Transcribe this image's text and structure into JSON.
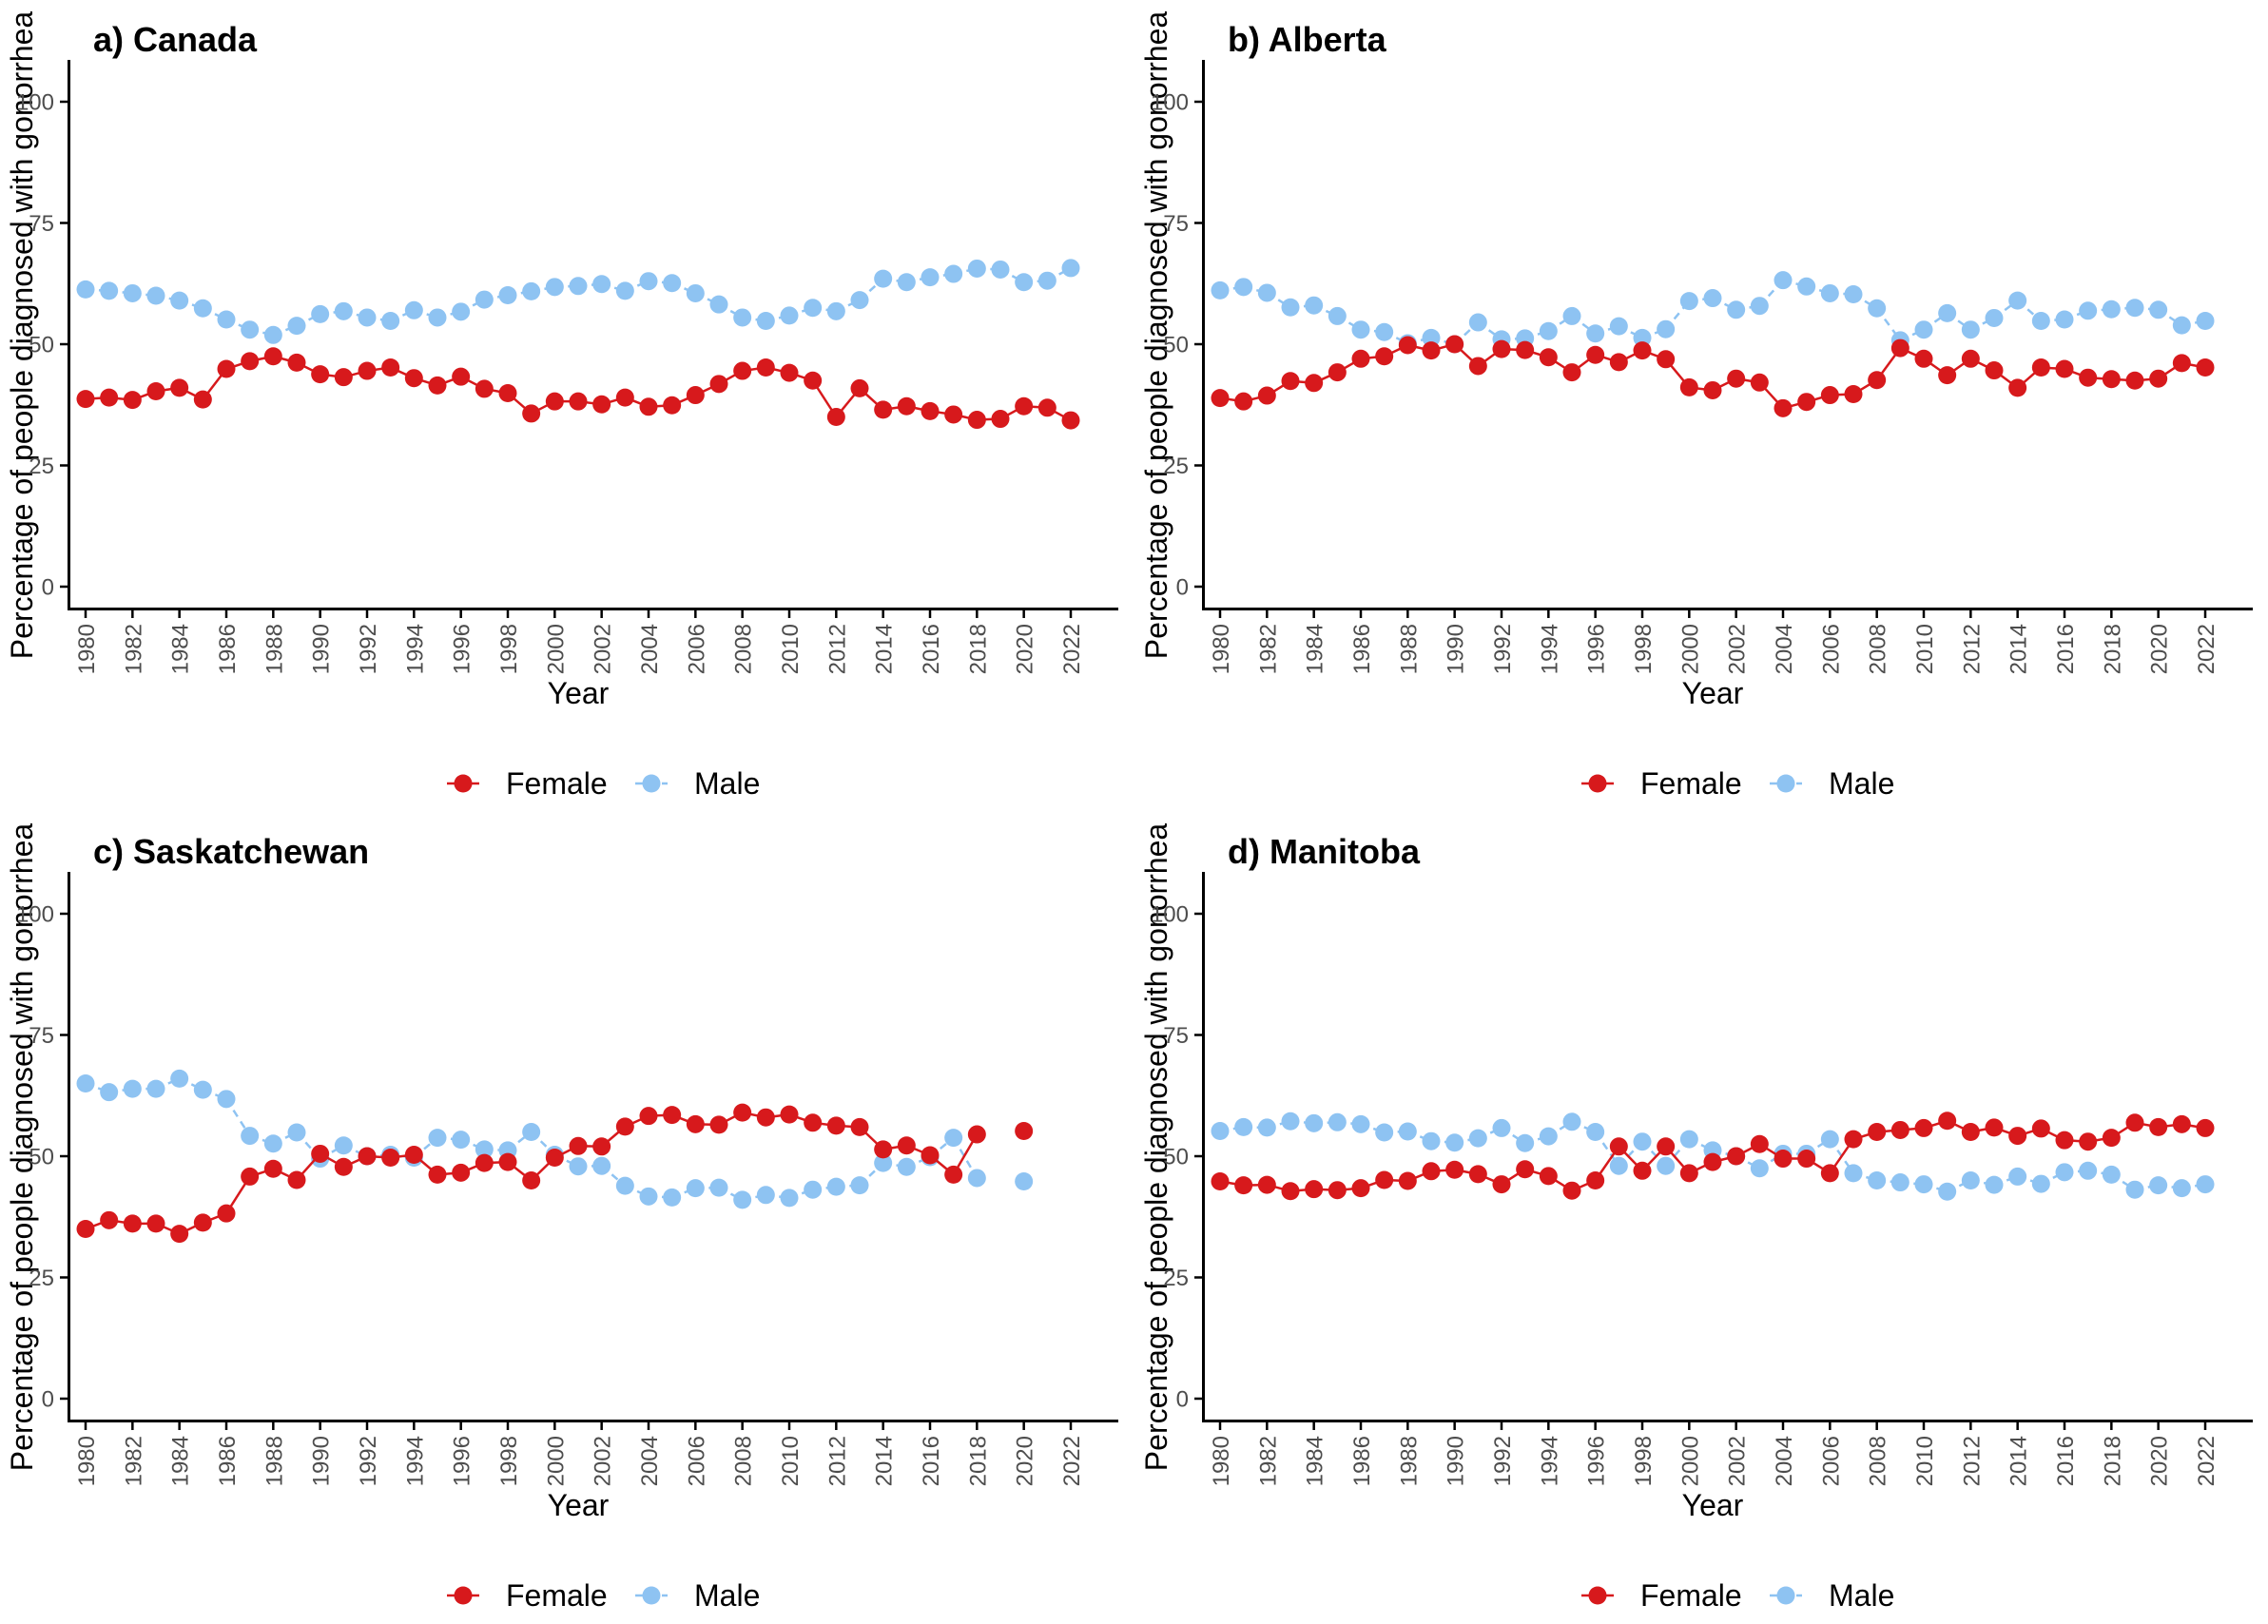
{
  "colors": {
    "female": "#d7191c",
    "male": "#8ec3f2",
    "axis": "#000000",
    "tick_text": "#4d4d4d"
  },
  "chart_data": [
    {
      "type": "line",
      "title": "a) Canada",
      "xlabel": "Year",
      "ylabel": "Percentage of people diagnosed with gonorrhea",
      "ylim": [
        0,
        100
      ],
      "yticks": [
        "0",
        "25",
        "50",
        "75",
        "100"
      ],
      "x": [
        1980,
        1981,
        1982,
        1983,
        1984,
        1985,
        1986,
        1987,
        1988,
        1989,
        1990,
        1991,
        1992,
        1993,
        1994,
        1995,
        1996,
        1997,
        1998,
        1999,
        2000,
        2001,
        2002,
        2003,
        2004,
        2005,
        2006,
        2007,
        2008,
        2009,
        2010,
        2011,
        2012,
        2013,
        2014,
        2015,
        2016,
        2017,
        2018,
        2019,
        2020,
        2021,
        2022
      ],
      "xticks": [
        "1980",
        "1982",
        "1984",
        "1986",
        "1988",
        "1990",
        "1992",
        "1994",
        "1996",
        "1998",
        "2000",
        "2002",
        "2004",
        "2006",
        "2008",
        "2010",
        "2012",
        "2014",
        "2016",
        "2018",
        "2020",
        "2022"
      ],
      "legend": [
        "Female",
        "Male"
      ],
      "series": [
        {
          "name": "Female",
          "values": [
            38.7,
            39.0,
            38.5,
            40.3,
            41.0,
            38.6,
            44.9,
            46.5,
            47.5,
            46.2,
            43.8,
            43.2,
            44.5,
            45.2,
            43.0,
            41.5,
            43.3,
            40.8,
            39.9,
            35.7,
            38.2,
            38.2,
            37.6,
            39.0,
            37.1,
            37.4,
            39.5,
            41.8,
            44.5,
            45.2,
            44.1,
            42.5,
            35.0,
            40.9,
            36.5,
            37.2,
            36.2,
            35.5,
            34.4,
            34.6,
            37.2,
            36.9,
            34.3
          ]
        },
        {
          "name": "Male",
          "values": [
            61.3,
            61.0,
            60.5,
            60.0,
            59.0,
            57.4,
            55.1,
            53.0,
            51.9,
            53.8,
            56.2,
            56.8,
            55.5,
            54.8,
            57.0,
            55.5,
            56.7,
            59.2,
            60.1,
            60.9,
            61.8,
            62.0,
            62.4,
            61.0,
            63.0,
            62.6,
            60.5,
            58.2,
            55.5,
            54.8,
            55.9,
            57.5,
            56.8,
            59.1,
            63.5,
            62.8,
            63.8,
            64.5,
            65.6,
            65.4,
            62.8,
            63.1,
            65.7
          ]
        }
      ]
    },
    {
      "type": "line",
      "title": "b) Alberta",
      "xlabel": "Year",
      "ylabel": "Percentage of people diagnosed with gonorrhea",
      "ylim": [
        0,
        100
      ],
      "yticks": [
        "0",
        "25",
        "50",
        "75",
        "100"
      ],
      "x": [
        1980,
        1981,
        1982,
        1983,
        1984,
        1985,
        1986,
        1987,
        1988,
        1989,
        1990,
        1991,
        1992,
        1993,
        1994,
        1995,
        1996,
        1997,
        1998,
        1999,
        2000,
        2001,
        2002,
        2003,
        2004,
        2005,
        2006,
        2007,
        2008,
        2009,
        2010,
        2011,
        2012,
        2013,
        2014,
        2015,
        2016,
        2017,
        2018,
        2019,
        2020,
        2021,
        2022
      ],
      "xticks": [
        "1980",
        "1982",
        "1984",
        "1986",
        "1988",
        "1990",
        "1992",
        "1994",
        "1996",
        "1998",
        "2000",
        "2002",
        "2004",
        "2006",
        "2008",
        "2010",
        "2012",
        "2014",
        "2016",
        "2018",
        "2020",
        "2022"
      ],
      "legend": [
        "Female",
        "Male"
      ],
      "series": [
        {
          "name": "Female",
          "values": [
            38.9,
            38.2,
            39.4,
            42.4,
            42.0,
            44.2,
            47.0,
            47.5,
            49.8,
            48.7,
            50.0,
            45.5,
            49.0,
            48.8,
            47.3,
            44.2,
            47.8,
            46.3,
            48.7,
            46.9,
            41.1,
            40.5,
            42.9,
            42.1,
            36.8,
            38.1,
            39.5,
            39.7,
            42.6,
            49.2,
            47.0,
            43.6,
            47.0,
            44.6,
            41.0,
            45.2,
            44.9,
            43.1,
            42.8,
            42.5,
            42.9,
            46.1,
            45.2
          ]
        },
        {
          "name": "Male",
          "values": [
            61.1,
            61.8,
            60.6,
            57.6,
            58.0,
            55.8,
            53.0,
            52.5,
            50.2,
            51.3,
            50.0,
            54.5,
            51.0,
            51.2,
            52.7,
            55.8,
            52.2,
            53.7,
            51.3,
            53.1,
            58.9,
            59.5,
            57.1,
            57.9,
            63.2,
            61.9,
            60.5,
            60.3,
            57.4,
            50.8,
            53.0,
            56.4,
            53.0,
            55.4,
            59.0,
            54.8,
            55.1,
            56.9,
            57.2,
            57.5,
            57.1,
            53.9,
            54.8
          ]
        }
      ]
    },
    {
      "type": "line",
      "title": "c) Saskatchewan",
      "xlabel": "Year",
      "ylabel": "Percentage of people diagnosed with gonorrhea",
      "ylim": [
        0,
        100
      ],
      "yticks": [
        "0",
        "25",
        "50",
        "75",
        "100"
      ],
      "x": [
        1980,
        1981,
        1982,
        1983,
        1984,
        1985,
        1986,
        1987,
        1988,
        1989,
        1990,
        1991,
        1992,
        1993,
        1994,
        1995,
        1996,
        1997,
        1998,
        1999,
        2000,
        2001,
        2002,
        2003,
        2004,
        2005,
        2006,
        2007,
        2008,
        2009,
        2010,
        2011,
        2012,
        2013,
        2014,
        2015,
        2016,
        2017,
        2018,
        2019,
        2020,
        2021,
        2022
      ],
      "xticks": [
        "1980",
        "1982",
        "1984",
        "1986",
        "1988",
        "1990",
        "1992",
        "1994",
        "1996",
        "1998",
        "2000",
        "2002",
        "2004",
        "2006",
        "2008",
        "2010",
        "2012",
        "2014",
        "2016",
        "2018",
        "2020",
        "2022"
      ],
      "legend": [
        "Female",
        "Male"
      ],
      "series": [
        {
          "name": "Female",
          "values": [
            35.0,
            36.8,
            36.1,
            36.1,
            34.0,
            36.3,
            38.2,
            45.8,
            47.4,
            45.1,
            50.5,
            47.8,
            50.0,
            49.7,
            50.3,
            46.2,
            46.6,
            48.6,
            48.8,
            45.0,
            49.7,
            52.1,
            52.0,
            56.1,
            58.3,
            58.5,
            56.6,
            56.5,
            59.0,
            58.0,
            58.6,
            56.9,
            56.3,
            56.0,
            51.4,
            52.2,
            50.2,
            46.2,
            54.5,
            null,
            55.2,
            null,
            null
          ]
        },
        {
          "name": "Male",
          "values": [
            65.0,
            63.2,
            63.9,
            63.9,
            66.0,
            63.7,
            61.8,
            54.2,
            52.6,
            54.9,
            49.5,
            52.2,
            50.0,
            50.3,
            49.7,
            53.8,
            53.4,
            51.4,
            51.2,
            55.0,
            50.3,
            47.9,
            48.0,
            43.9,
            41.7,
            41.5,
            43.4,
            43.5,
            41.0,
            42.0,
            41.4,
            43.1,
            43.7,
            44.0,
            48.6,
            47.8,
            49.8,
            53.8,
            45.5,
            null,
            44.8,
            null,
            null
          ]
        }
      ]
    },
    {
      "type": "line",
      "title": "d) Manitoba",
      "xlabel": "Year",
      "ylabel": "Percentage of people diagnosed with gonorrhea",
      "ylim": [
        0,
        100
      ],
      "yticks": [
        "0",
        "25",
        "50",
        "75",
        "100"
      ],
      "x": [
        1980,
        1981,
        1982,
        1983,
        1984,
        1985,
        1986,
        1987,
        1988,
        1989,
        1990,
        1991,
        1992,
        1993,
        1994,
        1995,
        1996,
        1997,
        1998,
        1999,
        2000,
        2001,
        2002,
        2003,
        2004,
        2005,
        2006,
        2007,
        2008,
        2009,
        2010,
        2011,
        2012,
        2013,
        2014,
        2015,
        2016,
        2017,
        2018,
        2019,
        2020,
        2021,
        2022
      ],
      "xticks": [
        "1980",
        "1982",
        "1984",
        "1986",
        "1988",
        "1990",
        "1992",
        "1994",
        "1996",
        "1998",
        "2000",
        "2002",
        "2004",
        "2006",
        "2008",
        "2010",
        "2012",
        "2014",
        "2016",
        "2018",
        "2020",
        "2022"
      ],
      "legend": [
        "Female",
        "Male"
      ],
      "series": [
        {
          "name": "Female",
          "values": [
            44.8,
            44.0,
            44.1,
            42.8,
            43.2,
            43.0,
            43.4,
            45.1,
            44.9,
            46.9,
            47.2,
            46.3,
            44.2,
            47.3,
            45.9,
            42.9,
            45.0,
            52.0,
            47.0,
            52.0,
            46.5,
            48.8,
            50.0,
            52.5,
            49.5,
            49.5,
            46.5,
            53.5,
            55.0,
            55.4,
            55.8,
            57.3,
            55.0,
            55.9,
            54.2,
            55.7,
            53.3,
            53.0,
            53.8,
            56.9,
            56.0,
            56.6,
            55.8
          ]
        },
        {
          "name": "Male",
          "values": [
            55.2,
            56.0,
            55.9,
            57.2,
            56.8,
            57.0,
            56.6,
            54.9,
            55.1,
            53.1,
            52.8,
            53.7,
            55.8,
            52.7,
            54.1,
            57.1,
            55.0,
            48.0,
            53.0,
            48.0,
            53.5,
            51.2,
            50.0,
            47.5,
            50.5,
            50.5,
            53.5,
            46.5,
            45.0,
            44.6,
            44.2,
            42.7,
            45.0,
            44.1,
            45.8,
            44.3,
            46.7,
            47.0,
            46.2,
            43.1,
            44.0,
            43.4,
            44.2
          ]
        }
      ]
    }
  ]
}
